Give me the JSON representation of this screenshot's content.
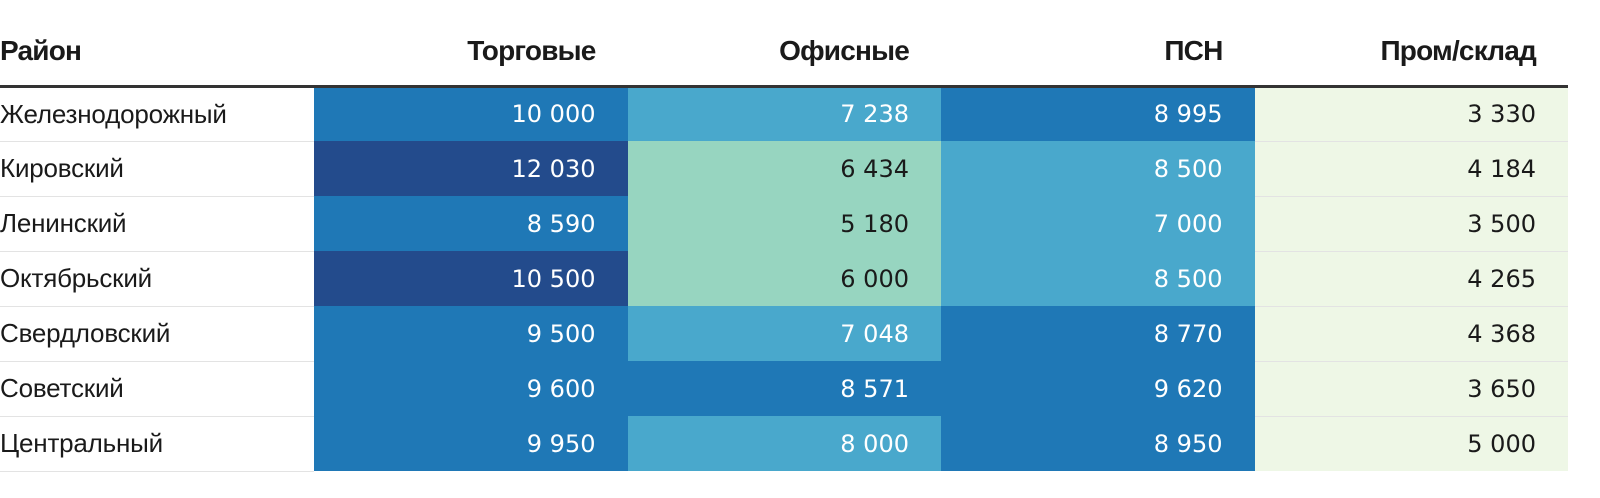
{
  "chart_data": {
    "type": "heatmap",
    "columns": [
      "Район",
      "Торговые",
      "Офисные",
      "ПСН",
      "Пром/склад"
    ],
    "rows": [
      {
        "name": "Железнодорожный",
        "values": [
          "10 000",
          "7 238",
          "8 995",
          "3 330"
        ],
        "colors": [
          "#1f78b6",
          "#49a8cc",
          "#1f78b6",
          "#eef7e6"
        ],
        "text_colors": [
          "#ffffff",
          "#ffffff",
          "#ffffff",
          "#1a1a1a"
        ]
      },
      {
        "name": "Кировский",
        "values": [
          "12 030",
          "6 434",
          "8 500",
          "4 184"
        ],
        "colors": [
          "#234b8c",
          "#97d5c0",
          "#49a8cc",
          "#eef7e6"
        ],
        "text_colors": [
          "#ffffff",
          "#1a1a1a",
          "#ffffff",
          "#1a1a1a"
        ]
      },
      {
        "name": "Ленинский",
        "values": [
          "8 590",
          "5 180",
          "7 000",
          "3 500"
        ],
        "colors": [
          "#1f78b6",
          "#97d5c0",
          "#49a8cc",
          "#eef7e6"
        ],
        "text_colors": [
          "#ffffff",
          "#1a1a1a",
          "#ffffff",
          "#1a1a1a"
        ]
      },
      {
        "name": "Октябрьский",
        "values": [
          "10 500",
          "6 000",
          "8 500",
          "4 265"
        ],
        "colors": [
          "#234b8c",
          "#97d5c0",
          "#49a8cc",
          "#eef7e6"
        ],
        "text_colors": [
          "#ffffff",
          "#1a1a1a",
          "#ffffff",
          "#1a1a1a"
        ]
      },
      {
        "name": "Свердловский",
        "values": [
          "9 500",
          "7 048",
          "8 770",
          "4 368"
        ],
        "colors": [
          "#1f78b6",
          "#49a8cc",
          "#1f78b6",
          "#eef7e6"
        ],
        "text_colors": [
          "#ffffff",
          "#ffffff",
          "#ffffff",
          "#1a1a1a"
        ]
      },
      {
        "name": "Советский",
        "values": [
          "9 600",
          "8 571",
          "9 620",
          "3 650"
        ],
        "colors": [
          "#1f78b6",
          "#1f78b6",
          "#1f78b6",
          "#eef7e6"
        ],
        "text_colors": [
          "#ffffff",
          "#ffffff",
          "#ffffff",
          "#1a1a1a"
        ]
      },
      {
        "name": "Центральный",
        "values": [
          "9 950",
          "8 000",
          "8 950",
          "5 000"
        ],
        "colors": [
          "#1f78b6",
          "#49a8cc",
          "#1f78b6",
          "#eef7e6"
        ],
        "text_colors": [
          "#ffffff",
          "#ffffff",
          "#ffffff",
          "#1a1a1a"
        ]
      }
    ],
    "colors": {
      "header_rule": "#333333",
      "row_divider": "#e3e3e3"
    }
  }
}
